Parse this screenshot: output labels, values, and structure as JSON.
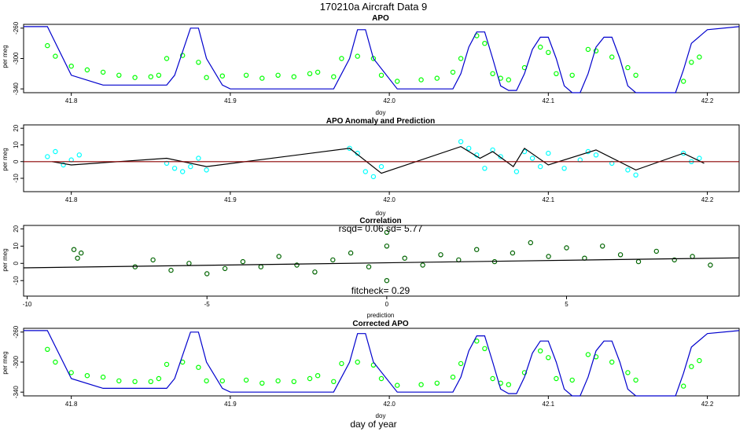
{
  "figure": {
    "title": "170210a   Aircraft Data 9",
    "bottom_xlabel": "day of year",
    "colors": {
      "green": "#00ff00",
      "cyan": "#00ffff",
      "dark_green": "#006400",
      "blue": "#0000cd",
      "red": "#8b0000",
      "axis": "#000000"
    }
  },
  "chart_data": [
    {
      "id": "apo",
      "type": "scatter",
      "title": "APO",
      "xlabel": "doy",
      "ylabel": "per meg",
      "xlim": [
        41.77,
        42.22
      ],
      "ylim": [
        -345,
        -255
      ],
      "xticks": [
        41.8,
        41.9,
        42.0,
        42.1,
        42.2
      ],
      "xtick_labels": [
        "41.8",
        "41.9",
        "42.0",
        "42.1",
        "42.2"
      ],
      "yticks": [
        -260,
        -300,
        -340
      ],
      "ytick_labels": [
        "-260",
        "-300",
        "-340"
      ],
      "series": [
        {
          "name": "measured APO",
          "kind": "points",
          "color": "#00ff00",
          "x": [
            41.785,
            41.79,
            41.8,
            41.81,
            41.82,
            41.83,
            41.84,
            41.85,
            41.855,
            41.86,
            41.87,
            41.88,
            41.885,
            41.895,
            41.91,
            41.92,
            41.93,
            41.94,
            41.95,
            41.955,
            41.965,
            41.97,
            41.98,
            41.99,
            41.995,
            42.005,
            42.02,
            42.03,
            42.04,
            42.045,
            42.055,
            42.06,
            42.065,
            42.07,
            42.075,
            42.085,
            42.095,
            42.1,
            42.105,
            42.115,
            42.125,
            42.13,
            42.14,
            42.15,
            42.155,
            42.185,
            42.19,
            42.195
          ],
          "y": [
            -283,
            -297,
            -310,
            -315,
            -318,
            -322,
            -325,
            -324,
            -322,
            -300,
            -296,
            -305,
            -325,
            -323,
            -322,
            -326,
            -322,
            -324,
            -320,
            -318,
            -324,
            -300,
            -297,
            -300,
            -322,
            -330,
            -328,
            -326,
            -318,
            -300,
            -270,
            -280,
            -320,
            -326,
            -328,
            -312,
            -285,
            -292,
            -320,
            -322,
            -288,
            -290,
            -298,
            -312,
            -322,
            -330,
            -305,
            -298
          ]
        },
        {
          "name": "model APO",
          "kind": "line",
          "color": "#0000cd",
          "x": [
            41.77,
            41.785,
            41.8,
            41.82,
            41.86,
            41.865,
            41.875,
            41.88,
            41.885,
            41.895,
            41.9,
            41.95,
            41.965,
            41.975,
            41.98,
            41.985,
            41.99,
            42.005,
            42.04,
            42.045,
            42.05,
            42.055,
            42.06,
            42.065,
            42.07,
            42.075,
            42.08,
            42.085,
            42.09,
            42.095,
            42.1,
            42.105,
            42.11,
            42.115,
            42.12,
            42.125,
            42.13,
            42.135,
            42.14,
            42.145,
            42.15,
            42.155,
            42.165,
            42.18,
            42.185,
            42.19,
            42.2,
            42.22
          ],
          "y": [
            -258,
            -258,
            -322,
            -335,
            -335,
            -322,
            -260,
            -260,
            -300,
            -335,
            -340,
            -340,
            -340,
            -300,
            -262,
            -262,
            -300,
            -340,
            -340,
            -320,
            -285,
            -265,
            -265,
            -300,
            -336,
            -342,
            -342,
            -320,
            -288,
            -272,
            -272,
            -300,
            -336,
            -345,
            -345,
            -320,
            -285,
            -272,
            -272,
            -300,
            -336,
            -345,
            -345,
            -345,
            -315,
            -280,
            -262,
            -258
          ]
        }
      ]
    },
    {
      "id": "anomaly",
      "type": "scatter",
      "title": "APO Anomaly and Prediction",
      "xlabel": "doy",
      "ylabel": "per meg",
      "xlim": [
        41.77,
        42.22
      ],
      "ylim": [
        -18,
        22
      ],
      "xticks": [
        41.8,
        41.9,
        42.0,
        42.1,
        42.2
      ],
      "xtick_labels": [
        "41.8",
        "41.9",
        "42.0",
        "42.1",
        "42.2"
      ],
      "yticks": [
        20,
        10,
        0,
        -10
      ],
      "ytick_labels": [
        "20",
        "10",
        "0",
        "-10"
      ],
      "series": [
        {
          "name": "anomaly",
          "kind": "points",
          "color": "#00ffff",
          "x": [
            41.785,
            41.79,
            41.795,
            41.8,
            41.805,
            41.86,
            41.865,
            41.87,
            41.875,
            41.88,
            41.885,
            41.975,
            41.98,
            41.985,
            41.99,
            41.995,
            42.045,
            42.05,
            42.055,
            42.06,
            42.065,
            42.07,
            42.08,
            42.085,
            42.09,
            42.095,
            42.1,
            42.11,
            42.12,
            42.125,
            42.13,
            42.14,
            42.15,
            42.155,
            42.185,
            42.19,
            42.195
          ],
          "y": [
            3,
            6,
            -2,
            1,
            4,
            -1,
            -4,
            -6,
            -3,
            2,
            -5,
            8,
            5,
            -6,
            -9,
            -3,
            12,
            8,
            4,
            -4,
            7,
            3,
            -6,
            6,
            2,
            -3,
            5,
            -4,
            1,
            6,
            4,
            -1,
            -5,
            -8,
            5,
            0,
            2
          ]
        },
        {
          "name": "prediction",
          "kind": "line",
          "color": "#000000",
          "x": [
            41.788,
            41.8,
            41.86,
            41.885,
            41.975,
            41.995,
            42.045,
            42.057,
            42.065,
            42.078,
            42.085,
            42.1,
            42.13,
            42.155,
            42.185,
            42.198
          ],
          "y": [
            0,
            -2,
            2,
            -3,
            8,
            -7,
            9,
            2,
            6,
            -3,
            8,
            -2,
            7,
            -5,
            5,
            -1
          ]
        },
        {
          "name": "zero line",
          "kind": "line",
          "color": "#8b0000",
          "x": [
            41.77,
            42.22
          ],
          "y": [
            0,
            0
          ]
        }
      ]
    },
    {
      "id": "correlation",
      "type": "scatter",
      "title": "Correlation",
      "annotation_top": "rsqd= 0.06 sd= 5.77",
      "annotation_bottom": "fitcheck= 0.29",
      "xlabel": "prediction",
      "ylabel": "per meg",
      "xlim": [
        -10.1,
        9.8
      ],
      "ylim": [
        -19,
        22
      ],
      "xticks": [
        -10,
        -5,
        0,
        5
      ],
      "xtick_labels": [
        "-10",
        "-5",
        "0",
        "5"
      ],
      "yticks": [
        20,
        10,
        0,
        -10
      ],
      "ytick_labels": [
        "20",
        "10",
        "0",
        "-10"
      ],
      "series": [
        {
          "name": "anomaly vs prediction",
          "kind": "points",
          "color": "#006400",
          "x": [
            -8.7,
            -8.6,
            -8.5,
            -7.0,
            -6.5,
            -6.0,
            -5.5,
            -5.0,
            -4.5,
            -4.0,
            -3.5,
            -3.0,
            -2.5,
            -2.0,
            -1.5,
            -1.0,
            -0.5,
            0.0,
            0.0,
            0.0,
            0.5,
            1.0,
            1.5,
            2.0,
            2.5,
            3.0,
            3.5,
            4.0,
            4.5,
            5.0,
            5.5,
            6.0,
            6.5,
            7.0,
            7.5,
            8.0,
            8.5,
            9.0
          ],
          "y": [
            8,
            3,
            6,
            -2,
            2,
            -4,
            0,
            -6,
            -3,
            1,
            -2,
            4,
            -1,
            -5,
            2,
            6,
            -2,
            18,
            -10,
            10,
            3,
            -1,
            5,
            2,
            8,
            1,
            6,
            12,
            4,
            9,
            3,
            10,
            5,
            1,
            7,
            2,
            4,
            -1
          ]
        },
        {
          "name": "fit",
          "kind": "line",
          "color": "#000000",
          "x": [
            -10.1,
            9.8
          ],
          "y": [
            -2.6,
            3.2
          ]
        }
      ]
    },
    {
      "id": "corrected",
      "type": "scatter",
      "title": "Corrected APO",
      "xlabel": "doy",
      "ylabel": "per meg",
      "xlim": [
        41.77,
        42.22
      ],
      "ylim": [
        -345,
        -255
      ],
      "xticks": [
        41.8,
        41.9,
        42.0,
        42.1,
        42.2
      ],
      "xtick_labels": [
        "41.8",
        "41.9",
        "42.0",
        "42.1",
        "42.2"
      ],
      "yticks": [
        -260,
        -300,
        -340
      ],
      "ytick_labels": [
        "-260",
        "-300",
        "-340"
      ],
      "series": [
        {
          "name": "corrected APO",
          "kind": "points",
          "color": "#00ff00",
          "x": [
            41.785,
            41.79,
            41.8,
            41.81,
            41.82,
            41.83,
            41.84,
            41.85,
            41.855,
            41.86,
            41.87,
            41.88,
            41.885,
            41.895,
            41.91,
            41.92,
            41.93,
            41.94,
            41.95,
            41.955,
            41.965,
            41.97,
            41.98,
            41.99,
            41.995,
            42.005,
            42.02,
            42.03,
            42.04,
            42.045,
            42.055,
            42.06,
            42.065,
            42.07,
            42.075,
            42.085,
            42.095,
            42.1,
            42.105,
            42.115,
            42.125,
            42.13,
            42.14,
            42.15,
            42.155,
            42.185,
            42.19,
            42.195
          ],
          "y": [
            -283,
            -300,
            -314,
            -318,
            -320,
            -325,
            -326,
            -326,
            -322,
            -303,
            -300,
            -307,
            -325,
            -325,
            -324,
            -328,
            -325,
            -326,
            -322,
            -318,
            -326,
            -302,
            -300,
            -304,
            -322,
            -331,
            -330,
            -328,
            -320,
            -302,
            -272,
            -282,
            -322,
            -328,
            -330,
            -314,
            -285,
            -294,
            -322,
            -324,
            -290,
            -293,
            -300,
            -314,
            -324,
            -332,
            -306,
            -298
          ]
        },
        {
          "name": "model APO",
          "kind": "line",
          "color": "#0000cd",
          "x": [
            41.77,
            41.785,
            41.8,
            41.82,
            41.86,
            41.865,
            41.875,
            41.88,
            41.885,
            41.895,
            41.9,
            41.95,
            41.965,
            41.975,
            41.98,
            41.985,
            41.99,
            42.005,
            42.04,
            42.045,
            42.05,
            42.055,
            42.06,
            42.065,
            42.07,
            42.075,
            42.08,
            42.085,
            42.09,
            42.095,
            42.1,
            42.105,
            42.11,
            42.115,
            42.12,
            42.125,
            42.13,
            42.135,
            42.14,
            42.145,
            42.15,
            42.155,
            42.165,
            42.18,
            42.185,
            42.19,
            42.2,
            42.22
          ],
          "y": [
            -258,
            -258,
            -322,
            -335,
            -335,
            -322,
            -260,
            -260,
            -300,
            -335,
            -340,
            -340,
            -340,
            -300,
            -262,
            -262,
            -300,
            -340,
            -340,
            -320,
            -285,
            -265,
            -265,
            -300,
            -336,
            -342,
            -342,
            -320,
            -288,
            -272,
            -272,
            -300,
            -336,
            -345,
            -345,
            -320,
            -285,
            -272,
            -272,
            -300,
            -336,
            -345,
            -345,
            -345,
            -315,
            -280,
            -262,
            -258
          ]
        }
      ]
    }
  ]
}
